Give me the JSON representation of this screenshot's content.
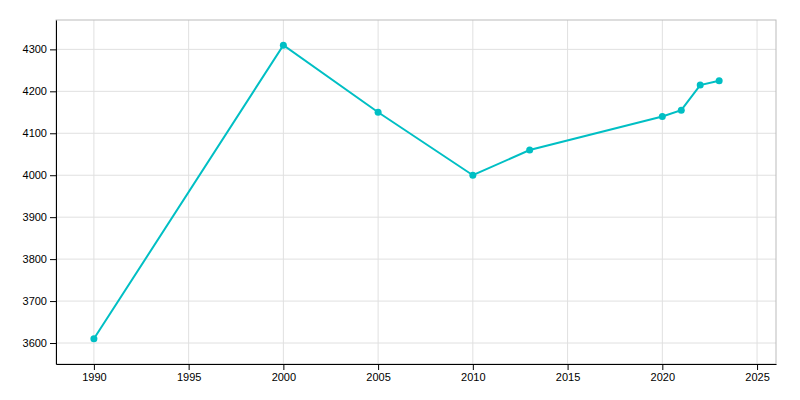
{
  "chart_data": {
    "type": "line",
    "x": [
      1990,
      2000,
      2005,
      2010,
      2013,
      2020,
      2021,
      2022,
      2023
    ],
    "values": [
      3610,
      4310,
      4150,
      4000,
      4060,
      4140,
      4155,
      4215,
      4225
    ],
    "color": "#00BFC4",
    "marker": "circle",
    "xlim": [
      1988,
      2026
    ],
    "ylim": [
      3550,
      4370
    ],
    "xticks": [
      1990,
      1995,
      2000,
      2005,
      2010,
      2015,
      2020,
      2025
    ],
    "yticks": [
      3600,
      3700,
      3800,
      3900,
      4000,
      4100,
      4200,
      4300
    ],
    "grid": true
  }
}
